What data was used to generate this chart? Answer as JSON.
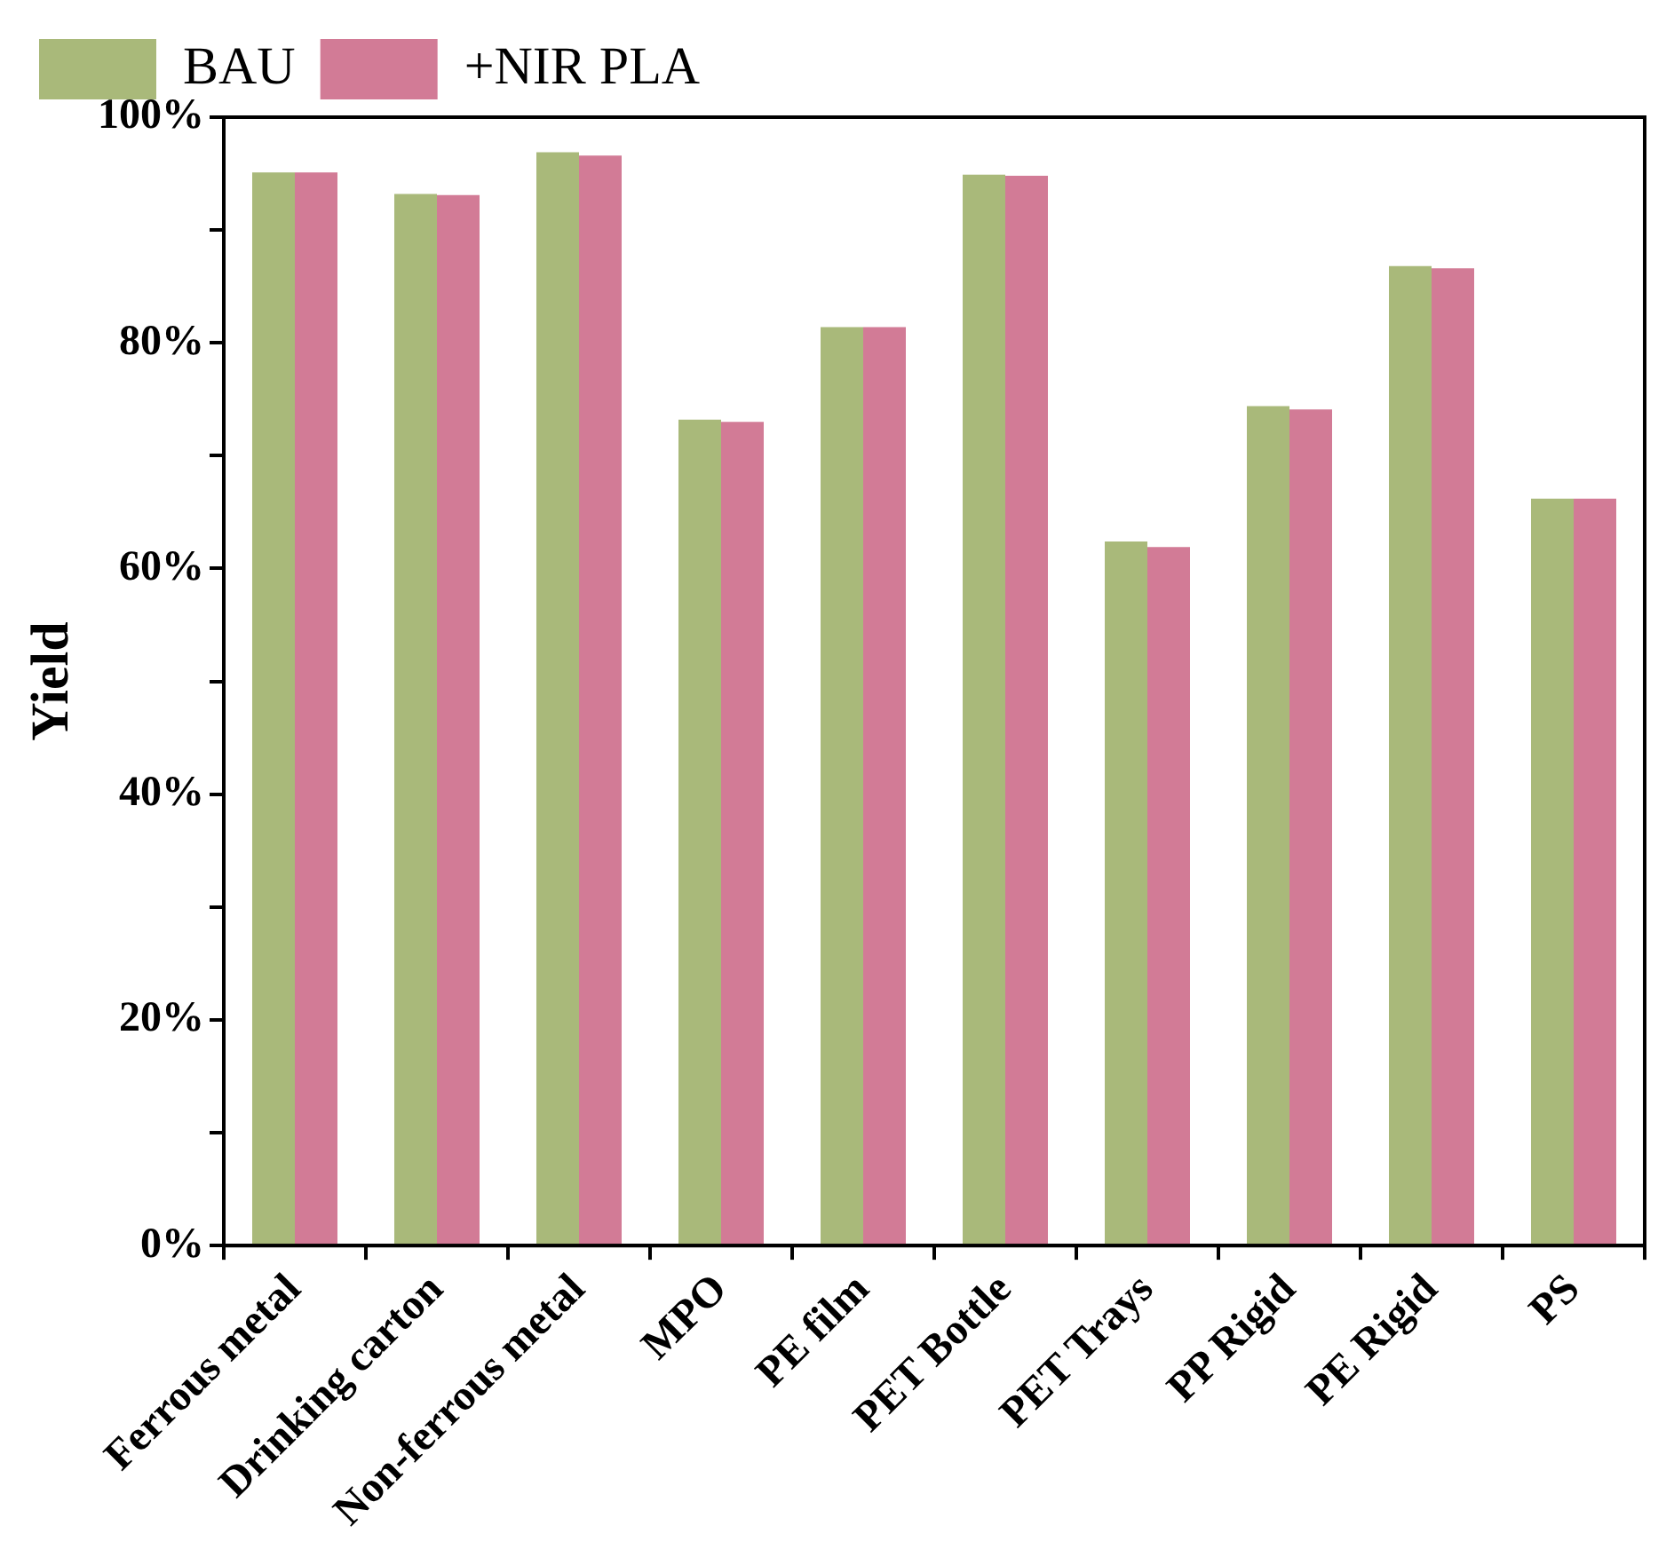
{
  "chart_data": {
    "type": "bar",
    "ylabel": "Yield",
    "categories": [
      "Ferrous metal",
      "Drinking carton",
      "Non-ferrous metal",
      "MPO",
      "PE film",
      "PET Bottle",
      "PET Trays",
      "PP Rigid",
      "PE Rigid",
      "PS"
    ],
    "series": [
      {
        "name": "BAU",
        "color": "#a9b97a",
        "values": [
          95.1,
          93.2,
          96.9,
          73.2,
          81.4,
          94.9,
          62.4,
          74.4,
          86.8,
          66.2
        ]
      },
      {
        "name": "+NIR PLA",
        "color": "#d27b96",
        "values": [
          95.1,
          93.1,
          96.6,
          73.0,
          81.4,
          94.8,
          61.9,
          74.1,
          86.6,
          66.2
        ]
      }
    ],
    "ylim": [
      0,
      100
    ],
    "yticks": [
      {
        "value": 0,
        "label": "0%"
      },
      {
        "value": 10,
        "label": null
      },
      {
        "value": 20,
        "label": "20%"
      },
      {
        "value": 30,
        "label": null
      },
      {
        "value": 40,
        "label": "40%"
      },
      {
        "value": 50,
        "label": null
      },
      {
        "value": 60,
        "label": "60%"
      },
      {
        "value": 70,
        "label": null
      },
      {
        "value": 80,
        "label": "80%"
      },
      {
        "value": 90,
        "label": null
      },
      {
        "value": 100,
        "label": "100%"
      }
    ],
    "legend": "top"
  }
}
